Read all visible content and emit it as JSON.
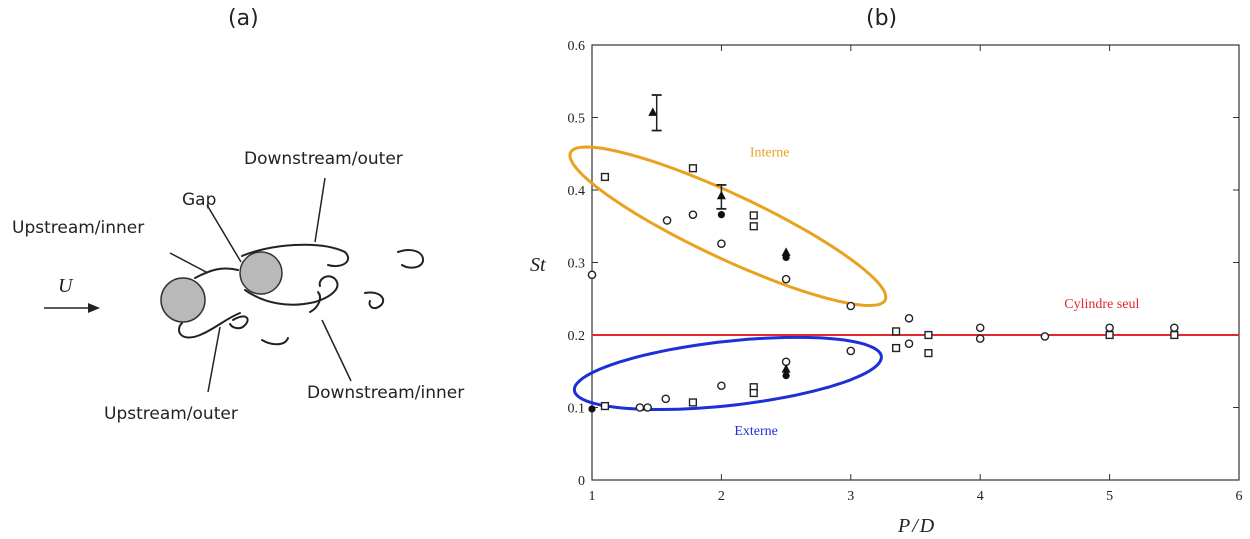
{
  "panels": {
    "a": "(a)",
    "b": "(b)"
  },
  "diagram": {
    "labels": {
      "downstream_outer": "Downstream/outer",
      "gap": "Gap",
      "upstream_inner": "Upstream/inner",
      "flow": "U",
      "downstream_inner": "Downstream/inner",
      "upstream_outer": "Upstream/outer"
    }
  },
  "chart_data": {
    "type": "scatter",
    "xlabel": "P/D",
    "ylabel": "St",
    "xlim": [
      1,
      6
    ],
    "ylim": [
      0,
      0.6
    ],
    "xticks": [
      1,
      2,
      3,
      4,
      5,
      6
    ],
    "yticks": [
      0,
      0.1,
      0.2,
      0.3,
      0.4,
      0.5,
      0.6
    ],
    "ytick_labels": [
      "0",
      "0.1",
      "0.2",
      "0.3",
      "0.4",
      "0.5",
      "0.6"
    ],
    "grid": false,
    "reference_line": {
      "label": "Cylindre seul",
      "y": 0.2,
      "color": "#e0282e"
    },
    "regions": [
      {
        "label": "Interne",
        "color": "#e8a21f",
        "center": [
          2.05,
          0.35
        ],
        "rx": 1.45,
        "ry": 0.058,
        "angle": -0.57
      },
      {
        "label": "Externe",
        "color": "#1d2fd6",
        "center": [
          2.05,
          0.147
        ],
        "rx": 1.2,
        "ry": 0.045,
        "angle": 0.15
      }
    ],
    "series": [
      {
        "marker": "circle",
        "points": [
          [
            1.0,
            0.283
          ],
          [
            1.37,
            0.1
          ],
          [
            1.43,
            0.1
          ],
          [
            1.58,
            0.358
          ],
          [
            1.57,
            0.112
          ],
          [
            1.78,
            0.366
          ],
          [
            2.0,
            0.326
          ],
          [
            2.0,
            0.13
          ],
          [
            2.5,
            0.277
          ],
          [
            2.5,
            0.163
          ],
          [
            3.0,
            0.24
          ],
          [
            3.0,
            0.178
          ],
          [
            3.45,
            0.223
          ],
          [
            3.45,
            0.188
          ],
          [
            4.0,
            0.21
          ],
          [
            4.0,
            0.195
          ],
          [
            4.5,
            0.198
          ],
          [
            5.0,
            0.21
          ],
          [
            5.5,
            0.21
          ]
        ]
      },
      {
        "marker": "square",
        "points": [
          [
            1.1,
            0.418
          ],
          [
            1.1,
            0.102
          ],
          [
            1.78,
            0.43
          ],
          [
            1.78,
            0.107
          ],
          [
            2.25,
            0.365
          ],
          [
            2.25,
            0.35
          ],
          [
            2.25,
            0.128
          ],
          [
            2.25,
            0.12
          ],
          [
            3.35,
            0.205
          ],
          [
            3.35,
            0.182
          ],
          [
            3.6,
            0.2
          ],
          [
            3.6,
            0.175
          ],
          [
            5.0,
            0.2
          ],
          [
            5.5,
            0.2
          ]
        ]
      },
      {
        "marker": "filled-circle",
        "points": [
          [
            1.0,
            0.098
          ],
          [
            2.0,
            0.366
          ],
          [
            2.5,
            0.307
          ],
          [
            2.5,
            0.144
          ]
        ]
      },
      {
        "marker": "filled-triangle",
        "points": [
          [
            1.47,
            0.507
          ],
          [
            2.0,
            0.392
          ],
          [
            2.5,
            0.314
          ],
          [
            2.5,
            0.153
          ]
        ]
      }
    ],
    "error_bars": [
      {
        "x": 1.5,
        "low": 0.482,
        "high": 0.531
      },
      {
        "x": 2.0,
        "low": 0.374,
        "high": 0.407
      }
    ]
  }
}
